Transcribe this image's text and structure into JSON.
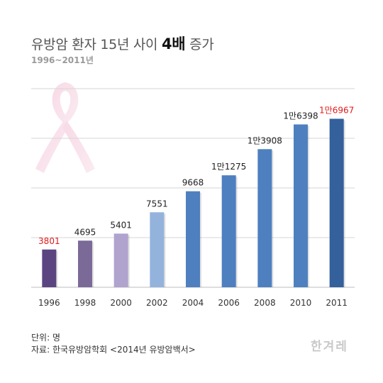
{
  "header": {
    "title_prefix": "유방암 환자 15년 사이 ",
    "title_emphasis": "4배",
    "title_suffix": " 증가",
    "subtitle": "1996~2011년"
  },
  "chart_data": {
    "type": "bar",
    "categories": [
      "1996",
      "1998",
      "2000",
      "2002",
      "2004",
      "2006",
      "2008",
      "2010",
      "2011"
    ],
    "values": [
      3801,
      4695,
      5401,
      7551,
      9668,
      11275,
      13908,
      16398,
      16967
    ],
    "data_labels": [
      "3801",
      "4695",
      "5401",
      "7551",
      "9668",
      "1만1275",
      "1만3908",
      "1만6398",
      "1만6967"
    ],
    "bar_colors": [
      "#5b4580",
      "#7b6a98",
      "#b0a3cd",
      "#93b3dc",
      "#4e80c0",
      "#4e80c0",
      "#4e80c0",
      "#4e80c0",
      "#34609c"
    ],
    "label_colors": [
      "#e01a1a",
      "#222222",
      "#222222",
      "#222222",
      "#222222",
      "#222222",
      "#222222",
      "#222222",
      "#e01a1a"
    ],
    "ylim": [
      0,
      20000
    ],
    "gridlines": [
      0,
      5000,
      10000,
      15000,
      20000
    ],
    "grid": true,
    "title": "유방암 환자 15년 사이 4배 증가",
    "xlabel": "",
    "ylabel": ""
  },
  "notes": {
    "unit": "단위: 명",
    "source": "자료: 한국유방암학회 <2014년 유방암백서>"
  },
  "logo": {
    "text": "한겨레"
  },
  "decor": {
    "ribbon_icon": "pink-ribbon-icon"
  }
}
